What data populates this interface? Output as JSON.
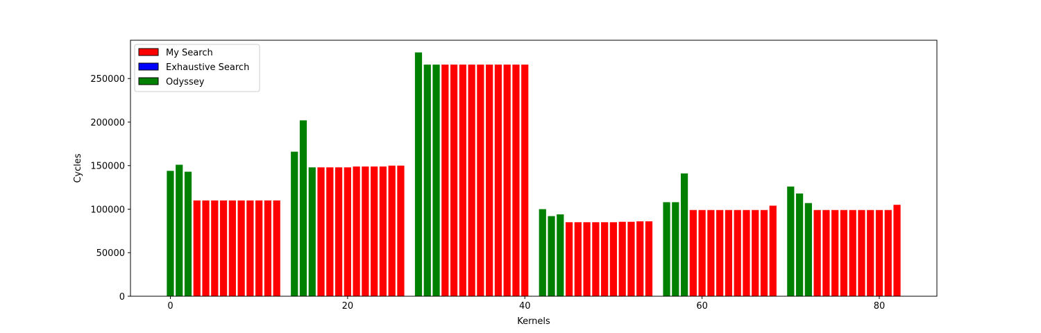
{
  "chart_data": {
    "type": "bar",
    "xlabel": "Kernels",
    "ylabel": "Cycles",
    "xlim": [
      -4.5,
      86.5
    ],
    "ylim": [
      0,
      294000
    ],
    "xticks": [
      0,
      20,
      40,
      60,
      80
    ],
    "yticks": [
      0,
      50000,
      100000,
      150000,
      200000,
      250000
    ],
    "legend": {
      "placement": "top-left",
      "entries": [
        {
          "name": "My Search",
          "color": "#ff0000"
        },
        {
          "name": "Exhaustive Search",
          "color": "#0000ff"
        },
        {
          "name": "Odyssey",
          "color": "#008000"
        }
      ]
    },
    "colors": {
      "red": "#ff0000",
      "green": "#008000"
    },
    "series": [
      {
        "name": "Odyssey",
        "color": "#008000",
        "x": [
          0,
          1,
          2,
          14,
          15,
          16,
          28,
          29,
          30,
          42,
          43,
          44,
          56,
          57,
          58,
          70,
          71,
          72
        ],
        "values": [
          144000,
          151000,
          143000,
          166000,
          202000,
          148000,
          280000,
          266000,
          266000,
          100000,
          92000,
          94000,
          108000,
          108000,
          141000,
          126000,
          118000,
          107000
        ]
      },
      {
        "name": "My Search",
        "color": "#ff0000",
        "x": [
          3,
          4,
          5,
          6,
          7,
          8,
          9,
          10,
          11,
          12,
          17,
          18,
          19,
          20,
          21,
          22,
          23,
          24,
          25,
          26,
          31,
          32,
          33,
          34,
          35,
          36,
          37,
          38,
          39,
          40,
          45,
          46,
          47,
          48,
          49,
          50,
          51,
          52,
          53,
          54,
          59,
          60,
          61,
          62,
          63,
          64,
          65,
          66,
          67,
          68,
          73,
          74,
          75,
          76,
          77,
          78,
          79,
          80,
          81,
          82
        ],
        "values": [
          110000,
          110000,
          110000,
          110000,
          110000,
          110000,
          110000,
          110000,
          110000,
          110000,
          148000,
          148000,
          148000,
          148000,
          149000,
          149000,
          149000,
          149000,
          150000,
          150000,
          266000,
          266000,
          266000,
          266000,
          266000,
          266000,
          266000,
          266000,
          266000,
          266000,
          85000,
          85000,
          85000,
          85000,
          85000,
          85000,
          85500,
          85500,
          86000,
          86000,
          99000,
          99000,
          99000,
          99000,
          99000,
          99000,
          99000,
          99000,
          99000,
          104000,
          99000,
          99000,
          99000,
          99000,
          99000,
          99000,
          99000,
          99000,
          99000,
          105000
        ]
      }
    ]
  }
}
